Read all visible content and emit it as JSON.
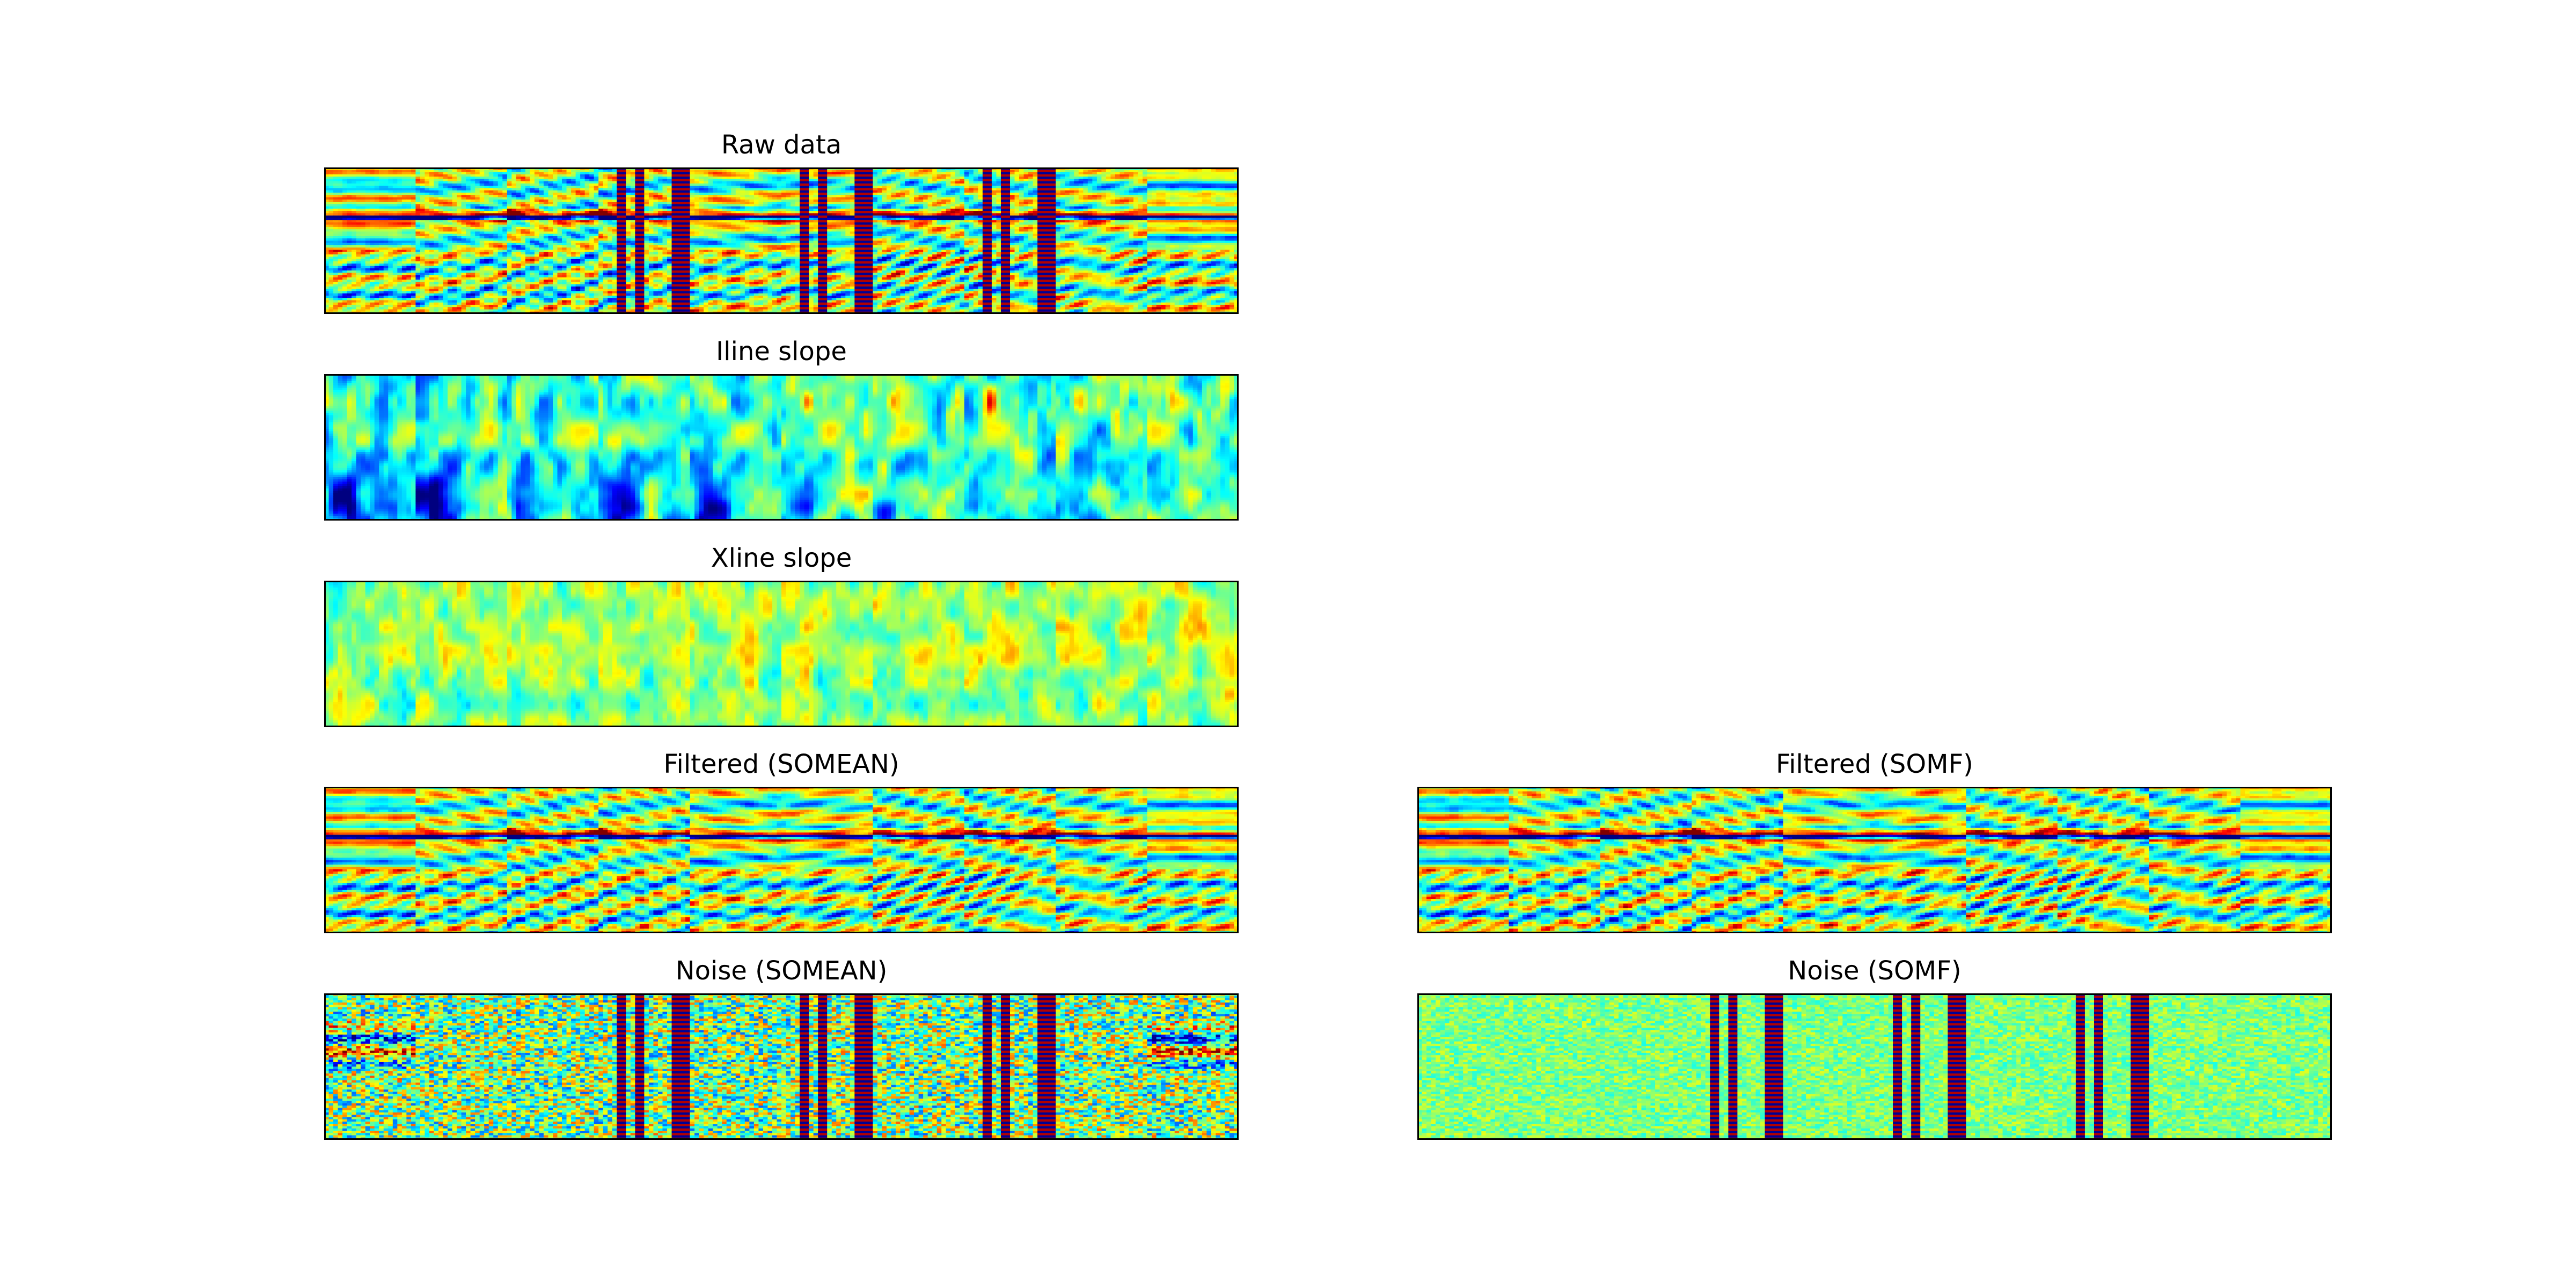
{
  "chart_data": [
    {
      "type": "heatmap",
      "title": "Raw data",
      "colormap": "jet",
      "grid": false,
      "panels_across": 10,
      "pattern": "seismic",
      "spikes": true
    },
    {
      "type": "heatmap",
      "title": "Iline slope",
      "colormap": "jet",
      "grid": false,
      "panels_across": 10,
      "pattern": "slope-inline"
    },
    {
      "type": "heatmap",
      "title": "Xline slope",
      "colormap": "jet",
      "grid": false,
      "panels_across": 10,
      "pattern": "slope-xline"
    },
    {
      "type": "heatmap",
      "title": "Filtered (SOMEAN)",
      "colormap": "jet",
      "grid": false,
      "panels_across": 10,
      "pattern": "seismic",
      "spikes": false
    },
    {
      "type": "heatmap",
      "title": "Filtered (SOMF)",
      "colormap": "jet",
      "grid": false,
      "panels_across": 10,
      "pattern": "seismic",
      "spikes": false
    },
    {
      "type": "heatmap",
      "title": "Noise (SOMEAN)",
      "colormap": "jet",
      "grid": false,
      "panels_across": 10,
      "pattern": "noise-strong",
      "spikes": true
    },
    {
      "type": "heatmap",
      "title": "Noise (SOMF)",
      "colormap": "jet",
      "grid": false,
      "panels_across": 10,
      "pattern": "noise-weak",
      "spikes": true
    }
  ]
}
